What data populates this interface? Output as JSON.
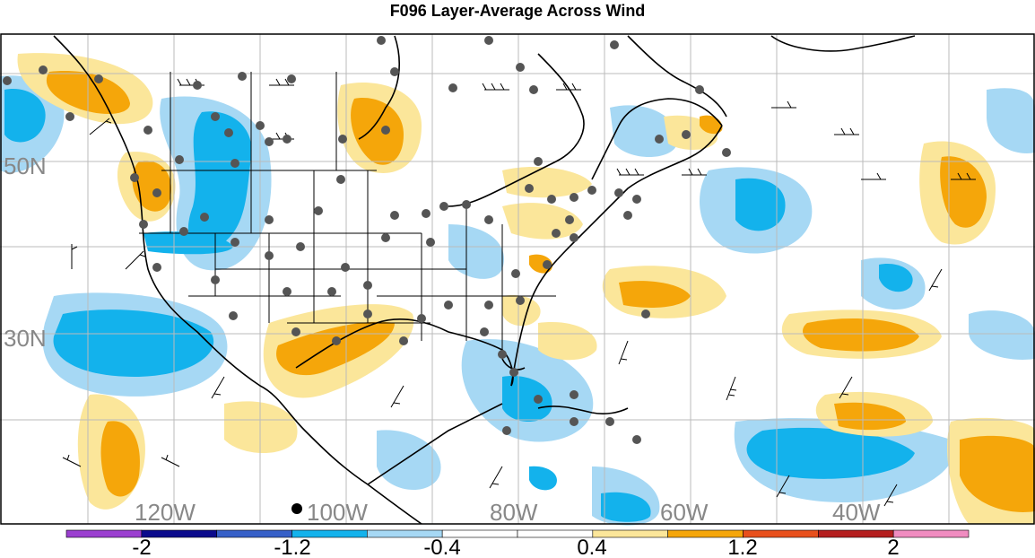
{
  "title": "F096 Layer-Average Across Wind",
  "longitude_labels": [
    "120W",
    "100W",
    "80W",
    "60W",
    "40W"
  ],
  "latitude_labels": [
    "50N",
    "30N"
  ],
  "colorbar": {
    "colors": [
      "#9b3fd0",
      "#0a0a8c",
      "#3660c8",
      "#13b2ec",
      "#a6d8f4",
      "#ffffff",
      "#ffffff",
      "#fbe69a",
      "#f5a60a",
      "#e8501c",
      "#b41e1e",
      "#f08cc0"
    ],
    "tick_labels": [
      "-2",
      "-1.2",
      "-0.4",
      "0.4",
      "1.2",
      "2"
    ]
  },
  "colors": {
    "neg_light": "#a6d8f4",
    "neg_strong": "#13b2ec",
    "pos_light": "#fbe69a",
    "pos_strong": "#f5a60a",
    "station": "#555555",
    "grid": "#bbbbbb",
    "land_lines": "#000000"
  }
}
